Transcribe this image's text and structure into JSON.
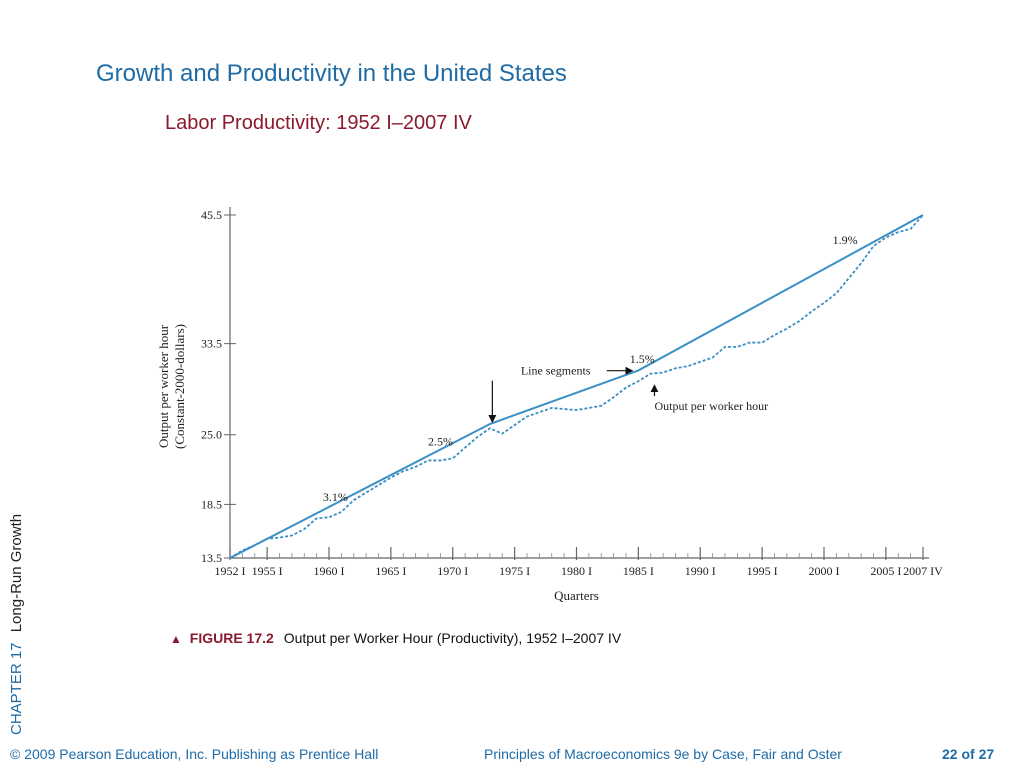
{
  "slide": {
    "title": "Growth and Productivity in the United States",
    "subtitle": "Labor Productivity: 1952 I–2007 IV",
    "chapter": "CHAPTER 17",
    "chapter_topic": "Long-Run Growth",
    "caption_figure": "FIGURE 17.2",
    "caption_text": "Output per Worker Hour (Productivity), 1952 I–2007 IV",
    "footer_copyright": "© 2009 Pearson Education, Inc. Publishing as Prentice Hall",
    "footer_book": "Principles of Macroeconomics 9e by Case, Fair and Oster",
    "footer_page": "22 of 27"
  },
  "colors": {
    "title": "#1f6ba5",
    "subtitle": "#8b1a2e",
    "trend_line": "#3a8fc4",
    "actual_series": "#3a8fc4"
  },
  "chart_data": {
    "type": "line",
    "title": "",
    "xlabel": "Quarters",
    "ylabel": "Output per worker hour\n(Constant-2000-dollars)",
    "ylim": [
      13.5,
      45.5
    ],
    "xlim": [
      1952,
      2008
    ],
    "y_ticks": [
      "13.5",
      "18.5",
      "25.0",
      "33.5",
      "45.5"
    ],
    "y_tick_values": [
      13.5,
      18.5,
      25.0,
      33.5,
      45.5
    ],
    "x_ticks": [
      {
        "label": "1952 I",
        "x": 1952
      },
      {
        "label": "1955 I",
        "x": 1955
      },
      {
        "label": "1960 I",
        "x": 1960
      },
      {
        "label": "1965 I",
        "x": 1965
      },
      {
        "label": "1970 I",
        "x": 1970
      },
      {
        "label": "1975 I",
        "x": 1975
      },
      {
        "label": "1980 I",
        "x": 1980
      },
      {
        "label": "1985 I",
        "x": 1985
      },
      {
        "label": "1990 I",
        "x": 1990
      },
      {
        "label": "1995 I",
        "x": 1995
      },
      {
        "label": "2000 I",
        "x": 2000
      },
      {
        "label": "2005 I",
        "x": 2005
      },
      {
        "label": "2007 IV",
        "x": 2008
      }
    ],
    "grid": false,
    "series": [
      {
        "name": "Line segments",
        "style": "solid",
        "x": [
          1952,
          1973,
          1985,
          2008
        ],
        "y": [
          13.5,
          26.0,
          31.0,
          45.5
        ]
      },
      {
        "name": "Output per worker hour",
        "style": "dashed",
        "x": [
          1952,
          1953,
          1954,
          1955,
          1956,
          1957,
          1958,
          1959,
          1960,
          1961,
          1962,
          1963,
          1964,
          1965,
          1966,
          1967,
          1968,
          1969,
          1970,
          1971,
          1972,
          1973,
          1974,
          1975,
          1976,
          1977,
          1978,
          1979,
          1980,
          1981,
          1982,
          1983,
          1984,
          1985,
          1986,
          1987,
          1988,
          1989,
          1990,
          1991,
          1992,
          1993,
          1994,
          1995,
          1996,
          1997,
          1998,
          1999,
          2000,
          2001,
          2002,
          2003,
          2004,
          2005,
          2006,
          2007,
          2008
        ],
        "y": [
          13.5,
          14.2,
          14.7,
          15.3,
          15.4,
          15.6,
          16.2,
          17.2,
          17.3,
          17.8,
          18.9,
          19.6,
          20.3,
          21.0,
          21.6,
          22.0,
          22.6,
          22.6,
          22.8,
          23.8,
          24.8,
          25.6,
          25.1,
          25.9,
          26.7,
          27.1,
          27.5,
          27.4,
          27.3,
          27.5,
          27.7,
          28.5,
          29.4,
          30.0,
          30.7,
          30.8,
          31.2,
          31.4,
          31.8,
          32.2,
          33.2,
          33.2,
          33.6,
          33.6,
          34.3,
          34.9,
          35.6,
          36.5,
          37.3,
          38.2,
          39.6,
          41.0,
          42.6,
          43.4,
          43.9,
          44.2,
          45.5
        ]
      }
    ],
    "annotations": [
      {
        "text": "3.1%",
        "x": 1959.5,
        "y": 18.8
      },
      {
        "text": "2.5%",
        "x": 1968.0,
        "y": 24.0
      },
      {
        "text": "1.5%",
        "x": 1984.3,
        "y": 31.7
      },
      {
        "text": "1.9%",
        "x": 2000.7,
        "y": 42.8
      },
      {
        "text": "Line segments",
        "x": 1975.5,
        "y": 30.6
      },
      {
        "text": "Output per worker hour",
        "x": 1986.3,
        "y": 27.3
      }
    ]
  }
}
